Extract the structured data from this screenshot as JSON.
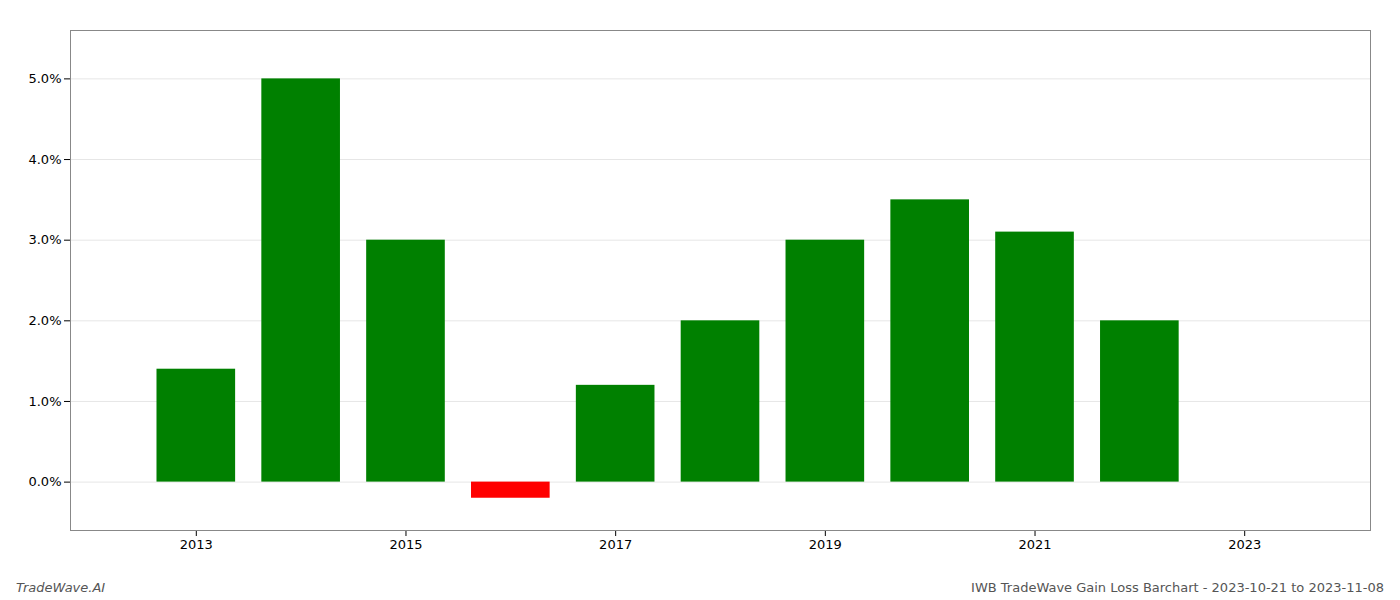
{
  "chart_data": {
    "type": "bar",
    "title": "IWB TradeWave Gain Loss Barchart - 2023-10-21 to 2023-11-08",
    "annotations": [
      "TradeWave.AI"
    ],
    "x": [
      2013,
      2014,
      2015,
      2016,
      2017,
      2018,
      2019,
      2020,
      2021,
      2022,
      2023
    ],
    "values": [
      0.014,
      0.05,
      0.03,
      -0.002,
      0.012,
      0.02,
      0.03,
      0.035,
      0.031,
      0.02,
      0.0
    ],
    "colors": [
      "#008000",
      "#008000",
      "#008000",
      "#ff0000",
      "#008000",
      "#008000",
      "#008000",
      "#008000",
      "#008000",
      "#008000",
      "#ffffff"
    ],
    "xlim": [
      2011.8,
      2024.2
    ],
    "xticks": [
      2013,
      2015,
      2017,
      2019,
      2021,
      2023
    ],
    "ylim": [
      -0.006,
      0.056
    ],
    "yticks": [
      {
        "value": 0.0,
        "label": "0.0%"
      },
      {
        "value": 0.01,
        "label": "1.0%"
      },
      {
        "value": 0.02,
        "label": "2.0%"
      },
      {
        "value": 0.03,
        "label": "3.0%"
      },
      {
        "value": 0.04,
        "label": "4.0%"
      },
      {
        "value": 0.05,
        "label": "5.0%"
      }
    ],
    "grid": true
  }
}
